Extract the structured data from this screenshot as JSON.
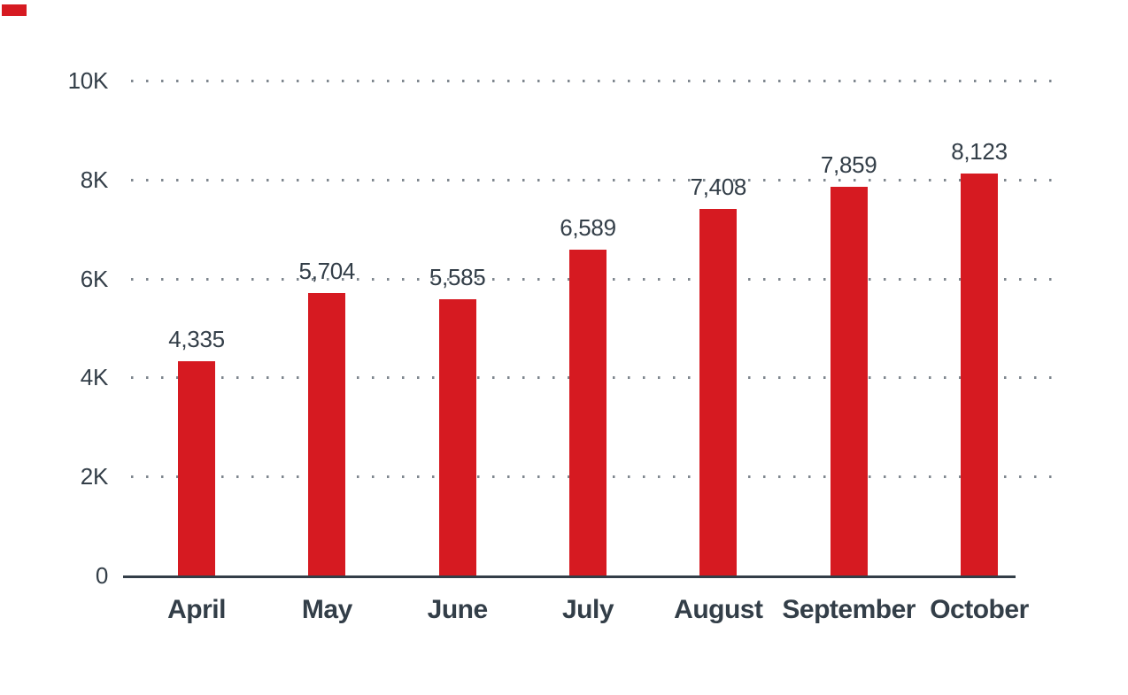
{
  "colors": {
    "background": "#ffffff",
    "bar": "#d61a21",
    "text": "#333e48",
    "grid_dot": "#7e868e",
    "axis": "#333e48"
  },
  "brand_mark": {
    "color": "#d61a21"
  },
  "chart_data": {
    "type": "bar",
    "title": "",
    "xlabel": "",
    "ylabel": "",
    "categories": [
      "April",
      "May",
      "June",
      "July",
      "August",
      "September",
      "October"
    ],
    "values": [
      4335,
      5704,
      5585,
      6589,
      7408,
      7859,
      8123
    ],
    "value_labels": [
      "4,335",
      "5,704",
      "5,585",
      "6,589",
      "7,408",
      "7,859",
      "8,123"
    ],
    "y_ticks": [
      {
        "label": "10K",
        "value": 10000
      },
      {
        "label": "8K",
        "value": 8000
      },
      {
        "label": "6K",
        "value": 6000
      },
      {
        "label": "4K",
        "value": 4000
      },
      {
        "label": "2K",
        "value": 2000
      },
      {
        "label": "0",
        "value": 0
      }
    ],
    "ylim": [
      0,
      10000
    ],
    "grid": "horizontal-dotted",
    "legend": "none",
    "bar_color": "#d61a21"
  }
}
